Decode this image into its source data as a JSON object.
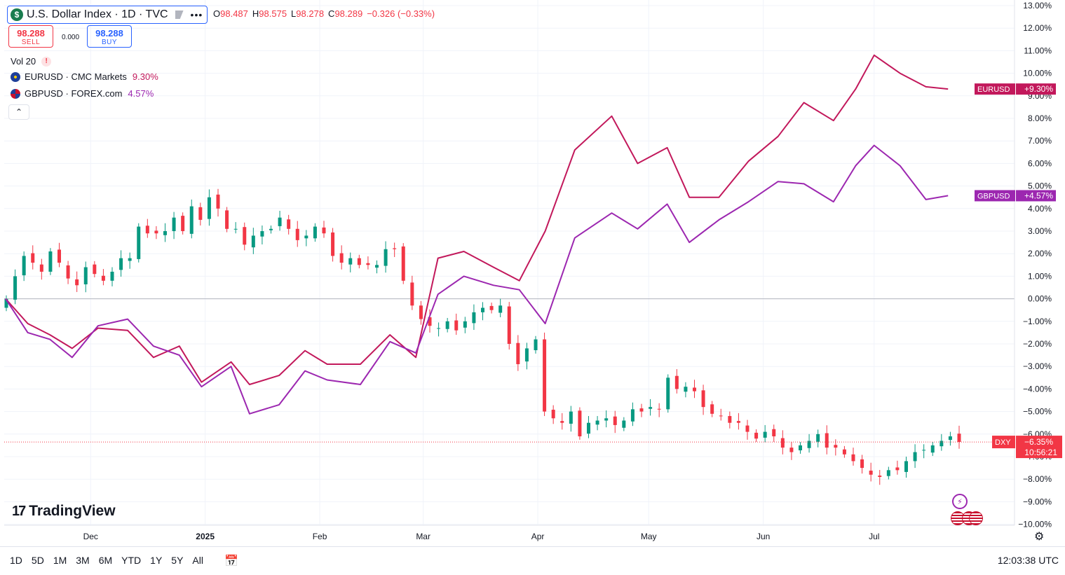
{
  "header": {
    "symbol_title": "U.S. Dollar Index · 1D · TVC",
    "logo_glyph": "$",
    "ohlc": [
      {
        "k": "O",
        "v": "98.487"
      },
      {
        "k": "H",
        "v": "98.575"
      },
      {
        "k": "L",
        "v": "98.278"
      },
      {
        "k": "C",
        "v": "98.289"
      },
      {
        "k": "",
        "v": "−0.326 (−0.33%)"
      }
    ],
    "sell": {
      "price": "98.288",
      "label": "SELL"
    },
    "buy": {
      "price": "98.288",
      "label": "BUY"
    },
    "spread": "0.000",
    "volume": {
      "label": "Vol 20",
      "warn": "!"
    },
    "legend": [
      {
        "name": "EURUSD · CMC Markets",
        "value": "9.30%",
        "color": "#c2185b",
        "flag": "eu-flag-icon"
      },
      {
        "name": "GBPUSD · FOREX.com",
        "value": "4.57%",
        "color": "#9c27b0",
        "flag": "uk-flag-icon"
      }
    ]
  },
  "branding": "TradingView",
  "bottom_bar": {
    "ranges": [
      "1D",
      "5D",
      "1M",
      "3M",
      "6M",
      "YTD",
      "1Y",
      "5Y",
      "All"
    ],
    "clock": "12:03:38 UTC"
  },
  "chart_data": {
    "type": "line",
    "title": "U.S. Dollar Index · 1D · TVC",
    "y_unit": "percent change",
    "ylim": [
      -10,
      13
    ],
    "y_ticks": [
      "13.00%",
      "12.00%",
      "11.00%",
      "10.00%",
      "9.00%",
      "8.00%",
      "7.00%",
      "6.00%",
      "5.00%",
      "4.00%",
      "3.00%",
      "2.00%",
      "1.00%",
      "0.00%",
      "−1.00%",
      "−2.00%",
      "−3.00%",
      "−4.00%",
      "−5.00%",
      "−6.00%",
      "−7.00%",
      "−8.00%",
      "−9.00%",
      "−10.00%"
    ],
    "x_ticks": [
      {
        "label": "Dec",
        "date": "2024-12-01",
        "bold": false
      },
      {
        "label": "2025",
        "date": "2025-01-01",
        "bold": true
      },
      {
        "label": "Feb",
        "date": "2025-02-01",
        "bold": false
      },
      {
        "label": "Mar",
        "date": "2025-03-01",
        "bold": false
      },
      {
        "label": "Apr",
        "date": "2025-04-01",
        "bold": false
      },
      {
        "label": "May",
        "date": "2025-05-01",
        "bold": false
      },
      {
        "label": "Jun",
        "date": "2025-06-01",
        "bold": false
      },
      {
        "label": "Jul",
        "date": "2025-07-01",
        "bold": false
      }
    ],
    "x_range": [
      "2024-11-08",
      "2025-07-24"
    ],
    "series": [
      {
        "name": "EURUSD",
        "color": "#c2185b",
        "label": "EURUSD",
        "last_label": "+9.30%",
        "x": [
          "2024-11-08",
          "2024-11-14",
          "2024-11-20",
          "2024-11-26",
          "2024-12-03",
          "2024-12-11",
          "2024-12-18",
          "2024-12-25",
          "2024-12-31",
          "2025-01-08",
          "2025-01-13",
          "2025-01-21",
          "2025-01-28",
          "2025-02-03",
          "2025-02-12",
          "2025-02-20",
          "2025-02-27",
          "2025-03-05",
          "2025-03-12",
          "2025-03-20",
          "2025-03-27",
          "2025-04-03",
          "2025-04-11",
          "2025-04-21",
          "2025-04-28",
          "2025-05-06",
          "2025-05-12",
          "2025-05-20",
          "2025-05-28",
          "2025-06-05",
          "2025-06-12",
          "2025-06-20",
          "2025-06-26",
          "2025-07-01",
          "2025-07-08",
          "2025-07-15",
          "2025-07-21"
        ],
        "y": [
          0,
          -1.1,
          -1.6,
          -2.2,
          -1.3,
          -1.4,
          -2.6,
          -2.1,
          -3.7,
          -2.8,
          -3.8,
          -3.4,
          -2.3,
          -2.9,
          -2.9,
          -1.6,
          -2.6,
          1.8,
          2.1,
          1.4,
          0.8,
          3.0,
          6.6,
          8.1,
          6.0,
          6.7,
          4.5,
          4.5,
          6.1,
          7.2,
          8.7,
          7.9,
          9.3,
          10.8,
          10.0,
          9.4,
          9.3
        ]
      },
      {
        "name": "GBPUSD",
        "color": "#9c27b0",
        "label": "GBPUSD",
        "last_label": "+4.57%",
        "x": [
          "2024-11-08",
          "2024-11-14",
          "2024-11-20",
          "2024-11-26",
          "2024-12-03",
          "2024-12-11",
          "2024-12-18",
          "2024-12-25",
          "2024-12-31",
          "2025-01-08",
          "2025-01-13",
          "2025-01-21",
          "2025-01-28",
          "2025-02-03",
          "2025-02-12",
          "2025-02-20",
          "2025-02-27",
          "2025-03-05",
          "2025-03-12",
          "2025-03-20",
          "2025-03-27",
          "2025-04-03",
          "2025-04-11",
          "2025-04-21",
          "2025-04-28",
          "2025-05-06",
          "2025-05-12",
          "2025-05-20",
          "2025-05-28",
          "2025-06-05",
          "2025-06-12",
          "2025-06-20",
          "2025-06-26",
          "2025-07-01",
          "2025-07-08",
          "2025-07-15",
          "2025-07-21"
        ],
        "y": [
          0,
          -1.5,
          -1.8,
          -2.6,
          -1.2,
          -0.9,
          -2.1,
          -2.5,
          -3.9,
          -3.0,
          -5.1,
          -4.7,
          -3.2,
          -3.6,
          -3.8,
          -1.9,
          -2.4,
          0.2,
          1.0,
          0.6,
          0.4,
          -1.1,
          2.7,
          3.8,
          3.1,
          4.2,
          2.5,
          3.5,
          4.3,
          5.2,
          5.1,
          4.3,
          5.9,
          6.8,
          5.9,
          4.4,
          4.57
        ]
      }
    ],
    "candles": {
      "name": "DXY",
      "up_color": "#089981",
      "down_color": "#f23645",
      "last_label": "−6.35%",
      "countdown": "10:56:21",
      "close": [
        0.0,
        1.0,
        1.9,
        1.6,
        1.2,
        2.1,
        1.6,
        0.9,
        0.6,
        1.4,
        1.1,
        0.8,
        1.2,
        1.8,
        1.8,
        3.2,
        2.9,
        2.9,
        3.0,
        3.6,
        3.0,
        4.1,
        3.5,
        4.5,
        4.0,
        3.1,
        3.1,
        2.4,
        2.8,
        3.0,
        3.1,
        3.6,
        3.1,
        2.6,
        2.8,
        3.2,
        2.9,
        1.9,
        1.6,
        1.8,
        1.5,
        1.5,
        1.5,
        2.2,
        2.2,
        0.8,
        -0.3,
        -0.9,
        -1.2,
        -1.3,
        -1.0,
        -1.4,
        -1.0,
        -0.6,
        -0.4,
        -0.5,
        -0.3,
        -2.0,
        -2.9,
        -2.2,
        -1.8,
        -5.0,
        -5.3,
        -5.5,
        -5.0,
        -6.1,
        -5.5,
        -5.4,
        -5.3,
        -5.6,
        -5.4,
        -4.9,
        -5.0,
        -4.8,
        -4.9,
        -3.5,
        -4.0,
        -3.9,
        -4.1,
        -4.8,
        -5.1,
        -5.2,
        -5.5,
        -5.5,
        -5.9,
        -6.2,
        -5.9,
        -6.1,
        -6.6,
        -6.8,
        -6.5,
        -6.3,
        -6.0,
        -6.6,
        -6.6,
        -6.9,
        -7.2,
        -7.5,
        -7.8,
        -7.9,
        -7.6,
        -7.6,
        -7.2,
        -6.8,
        -6.7,
        -6.5,
        -6.3,
        -6.1,
        -6.35
      ]
    }
  }
}
